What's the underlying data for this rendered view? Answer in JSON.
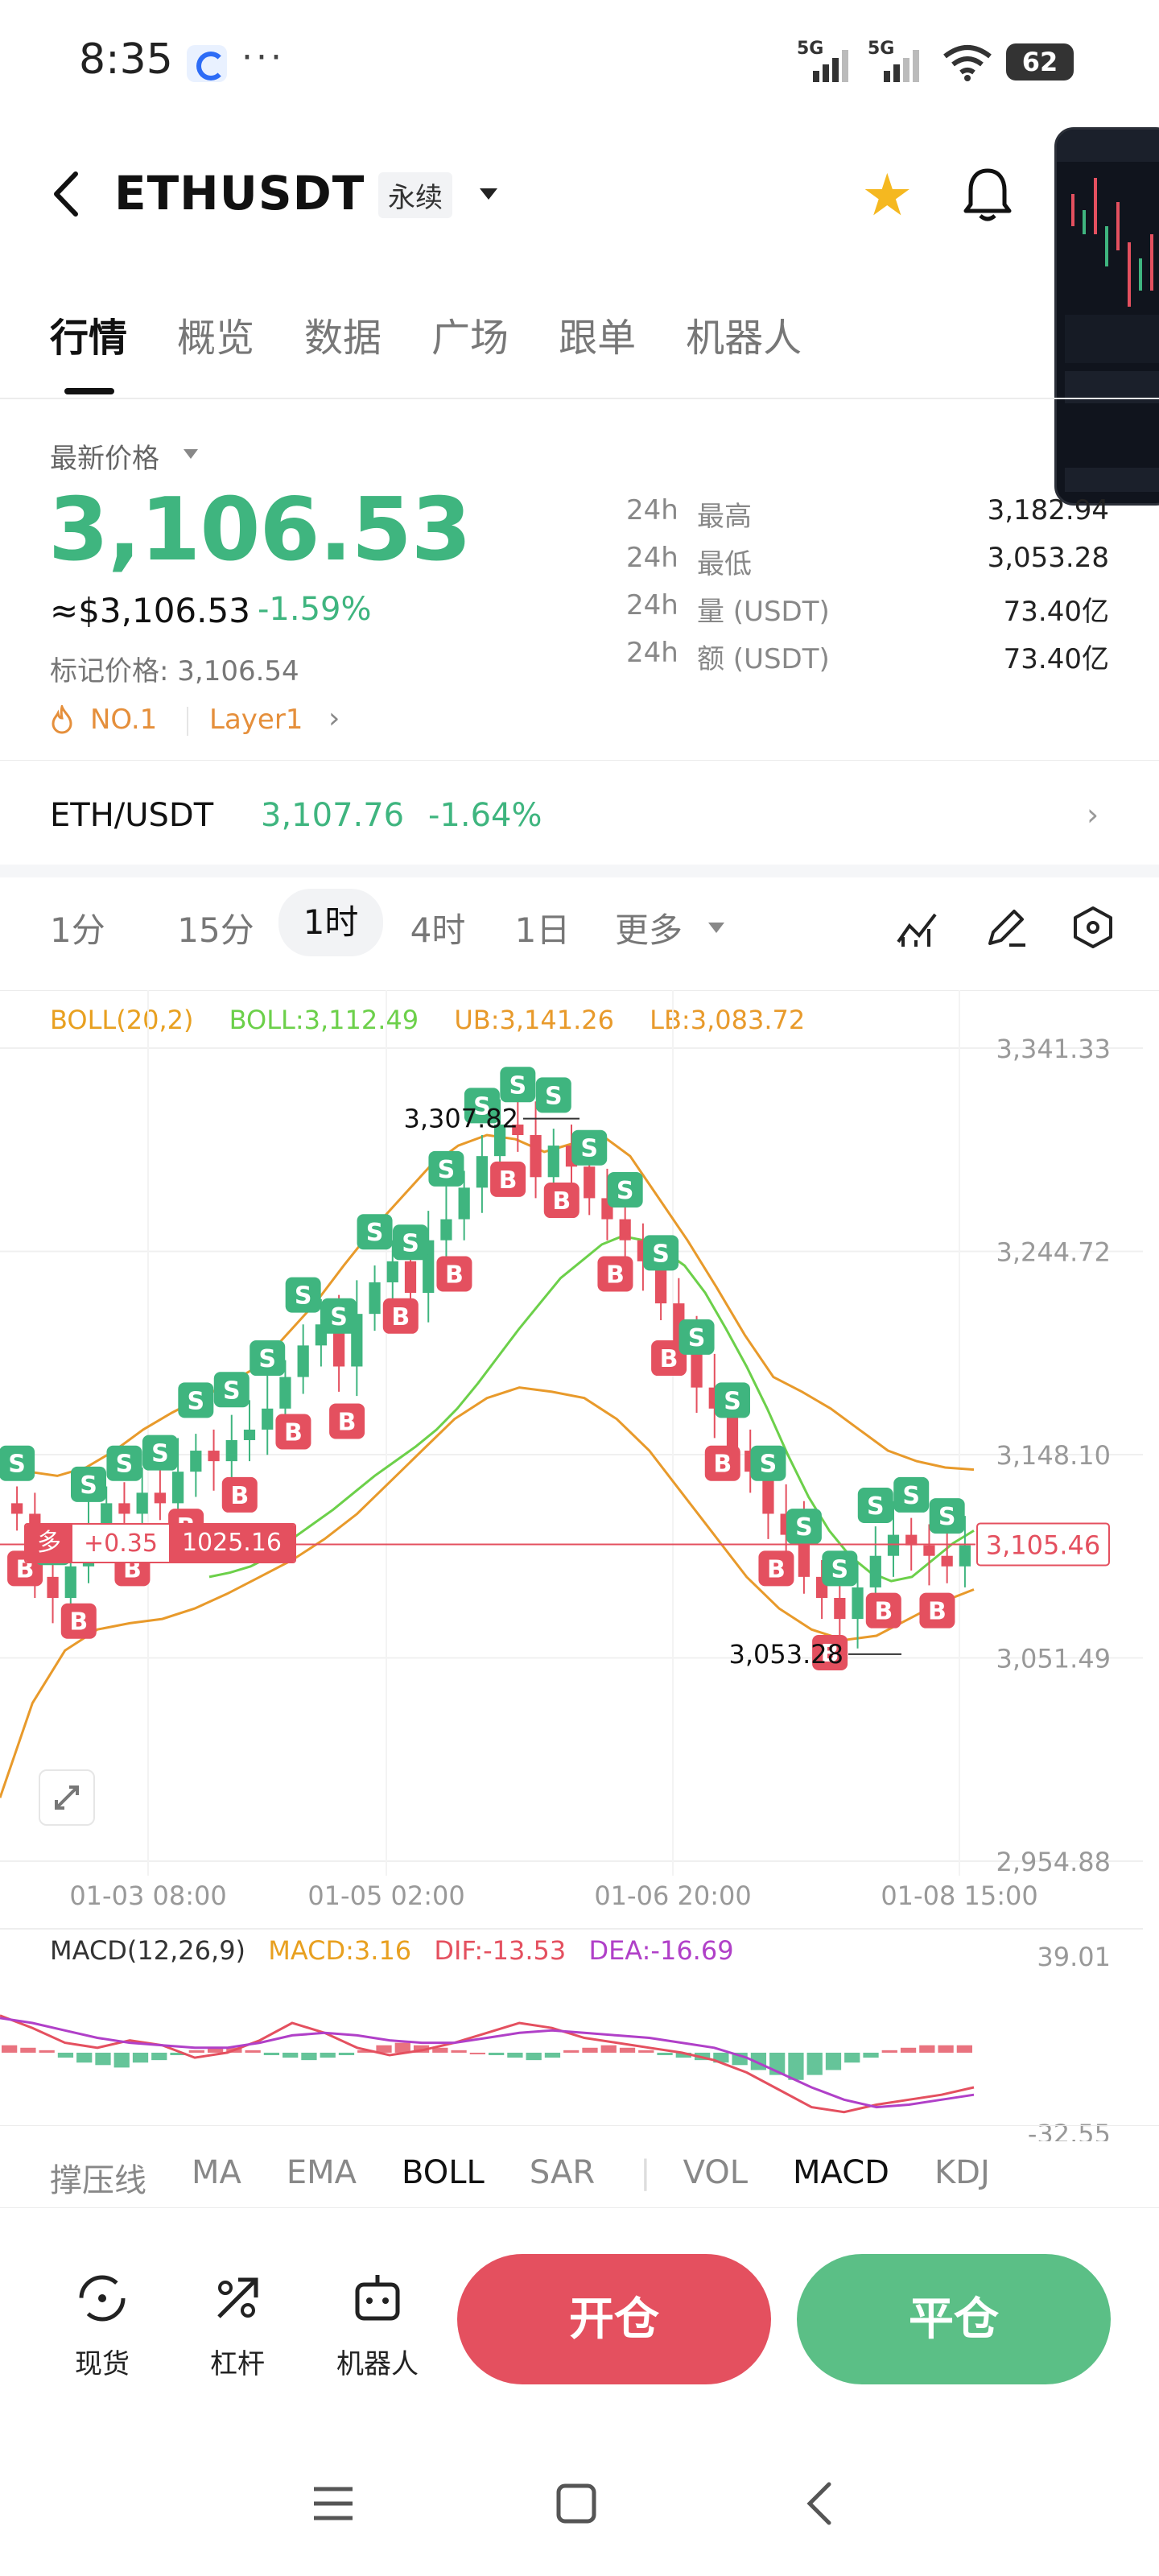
{
  "status_bar": {
    "time": "8:35",
    "dots": "···",
    "signal1_label": "5G",
    "signal2_label": "5G",
    "battery": "62"
  },
  "header": {
    "symbol": "ETHUSDT",
    "contract_type": "永续"
  },
  "tabs": [
    "行情",
    "概览",
    "数据",
    "广场",
    "跟单",
    "机器人"
  ],
  "price": {
    "last_label": "最新价格",
    "last": "3,106.53",
    "usd": "≈$3,106.53",
    "change_pct": "-1.59%",
    "mark_price": "标记价格: 3,106.54",
    "rank": "NO.1",
    "tag": "Layer1",
    "chevron": "›"
  },
  "stats": [
    {
      "k1": "24h",
      "k2": "最高",
      "v": "3,182.94"
    },
    {
      "k1": "24h",
      "k2": "最低",
      "v": "3,053.28"
    },
    {
      "k1": "24h",
      "k2": "量 (USDT)",
      "v": "73.40亿"
    },
    {
      "k1": "24h",
      "k2": "额 (USDT)",
      "v": "73.40亿"
    }
  ],
  "spot": {
    "pair": "ETH/USDT",
    "price": "3,107.76",
    "pct": "-1.64%",
    "chevron": "›"
  },
  "intervals": [
    "1分",
    "15分",
    "1时",
    "4时",
    "1日",
    "更多"
  ],
  "active_interval": "1时",
  "chart_legend": {
    "boll": "BOLL(20,2)",
    "mid": "BOLL:3,112.49",
    "ub": "UB:3,141.26",
    "lb": "LB:3,083.72"
  },
  "macd_legend": {
    "name": "MACD(12,26,9)",
    "macd": "MACD:3.16",
    "dif": "DIF:-13.53",
    "dea": "DEA:-16.69"
  },
  "position_tag": {
    "side": "多",
    "pnl": "+0.35",
    "price": "1025.16"
  },
  "indicator_tabs": [
    "撑压线",
    "MA",
    "EMA",
    "BOLL",
    "SAR",
    "VOL",
    "MACD",
    "KDJ"
  ],
  "active_indicators": [
    "BOLL",
    "MACD"
  ],
  "actions": [
    {
      "label": "现货",
      "icon": "spot-icon"
    },
    {
      "label": "杠杆",
      "icon": "leverage-icon"
    },
    {
      "label": "机器人",
      "icon": "robot-icon"
    }
  ],
  "open_label": "开仓",
  "close_label": "平仓",
  "colors": {
    "up": "#3fb57f",
    "down": "#e4505f",
    "boll_mid": "#6cd04a",
    "boll_band": "#e89a2b",
    "dea": "#b040c8"
  },
  "chart_data": [
    {
      "type": "candlestick",
      "x_ticks": [
        "01-03 08:00",
        "01-05 02:00",
        "01-06 20:00",
        "01-08 15:00"
      ],
      "y_ticks": [
        "3,341.33",
        "3,244.72",
        "3,148.10",
        "3,051.49",
        "2,954.88"
      ],
      "ylim": [
        2954.88,
        3341.33
      ],
      "high_label": "3,307.82",
      "low_label": "3,053.28",
      "current_price_label": "3,105.46",
      "current_price": 3105.46,
      "close": [
        3120,
        3090,
        3080,
        3095,
        3110,
        3125,
        3120,
        3130,
        3125,
        3140,
        3150,
        3145,
        3155,
        3160,
        3170,
        3185,
        3200,
        3210,
        3190,
        3215,
        3230,
        3240,
        3225,
        3250,
        3260,
        3275,
        3290,
        3305,
        3300,
        3280,
        3295,
        3285,
        3270,
        3260,
        3250,
        3240,
        3220,
        3200,
        3180,
        3170,
        3150,
        3140,
        3120,
        3110,
        3090,
        3080,
        3070,
        3085,
        3100,
        3110,
        3105,
        3100,
        3095,
        3105
      ],
      "series": [
        {
          "name": "BOLL",
          "values": [
            3090,
            3092,
            3095,
            3100,
            3108,
            3115,
            3122,
            3130,
            3138,
            3145,
            3152,
            3160,
            3170,
            3182,
            3195,
            3208,
            3220,
            3232,
            3240,
            3248,
            3252,
            3250,
            3245,
            3238,
            3225,
            3208,
            3190,
            3170,
            3148,
            3128,
            3112,
            3100,
            3092,
            3088,
            3090,
            3098,
            3106,
            3112
          ]
        },
        {
          "name": "UB",
          "values": [
            3145,
            3140,
            3138,
            3142,
            3150,
            3160,
            3168,
            3175,
            3182,
            3190,
            3205,
            3220,
            3238,
            3255,
            3270,
            3285,
            3295,
            3300,
            3298,
            3292,
            3296,
            3300,
            3290,
            3270,
            3250,
            3228,
            3205,
            3185,
            3178,
            3170,
            3160,
            3150,
            3145,
            3142,
            3141
          ]
        },
        {
          "name": "LB",
          "values": [
            2985,
            3030,
            3055,
            3065,
            3068,
            3070,
            3075,
            3082,
            3090,
            3098,
            3108,
            3120,
            3135,
            3150,
            3165,
            3175,
            3180,
            3178,
            3175,
            3165,
            3150,
            3130,
            3110,
            3090,
            3075,
            3065,
            3060,
            3062,
            3070,
            3078,
            3084
          ]
        }
      ]
    },
    {
      "type": "bar",
      "y_ticks": [
        "39.01",
        "-32.55"
      ],
      "ylim": [
        -32.55,
        39.01
      ],
      "values": [
        3,
        2,
        1,
        -2,
        -4,
        -5,
        -6,
        -4,
        -3,
        -1,
        1,
        2,
        2,
        1,
        -1,
        -2,
        -3,
        -2,
        -1,
        1,
        3,
        4,
        3,
        2,
        1,
        0,
        -1,
        -2,
        -3,
        -2,
        1,
        2,
        3,
        2,
        1,
        -1,
        -2,
        -3,
        -4,
        -5,
        -7,
        -9,
        -11,
        -9,
        -7,
        -4,
        -2,
        1,
        2,
        3,
        3,
        3
      ],
      "series": [
        {
          "name": "DIF",
          "values": [
            15,
            10,
            4,
            2,
            5,
            3,
            -2,
            0,
            5,
            12,
            8,
            2,
            -1,
            1,
            4,
            8,
            12,
            10,
            6,
            4,
            2,
            0,
            -3,
            -8,
            -15,
            -22,
            -24,
            -21,
            -19,
            -17,
            -14
          ]
        },
        {
          "name": "DEA",
          "values": [
            14,
            12,
            9,
            6,
            4,
            3,
            2,
            2,
            4,
            7,
            8,
            7,
            5,
            4,
            4,
            6,
            8,
            9,
            8,
            7,
            6,
            4,
            2,
            -2,
            -8,
            -14,
            -19,
            -22,
            -21,
            -19,
            -17
          ]
        }
      ]
    }
  ]
}
